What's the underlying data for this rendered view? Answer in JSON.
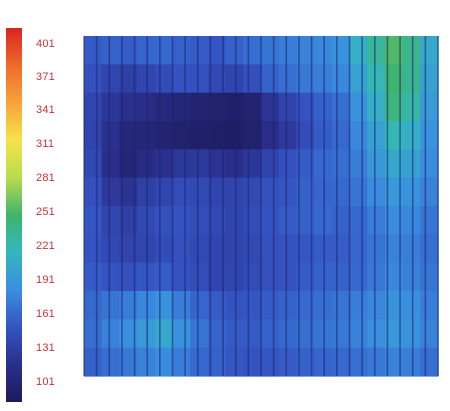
{
  "chart_data": {
    "type": "heatmap",
    "title": "",
    "xlabel": "",
    "ylabel": "",
    "colorbar": {
      "ticks": [
        "401",
        "371",
        "341",
        "311",
        "281",
        "251",
        "221",
        "191",
        "161",
        "131",
        "101"
      ],
      "range": [
        101,
        401
      ],
      "orientation": "vertical",
      "placement": "left",
      "colors": [
        "#d7261e",
        "#ef6a2a",
        "#f6a33a",
        "#f6e24a",
        "#b9dc4c",
        "#3fb46b",
        "#33b7bf",
        "#3a8ee0",
        "#3454c2",
        "#2a2f8c",
        "#1b1a5c"
      ]
    },
    "rows": 12,
    "cols": 20,
    "values": [
      [
        165,
        168,
        166,
        170,
        172,
        168,
        165,
        162,
        168,
        175,
        178,
        182,
        185,
        188,
        195,
        215,
        235,
        255,
        240,
        210
      ],
      [
        158,
        150,
        145,
        150,
        155,
        160,
        158,
        152,
        150,
        158,
        168,
        175,
        180,
        182,
        188,
        205,
        225,
        250,
        238,
        205
      ],
      [
        150,
        138,
        132,
        128,
        122,
        118,
        115,
        112,
        110,
        115,
        135,
        148,
        160,
        168,
        175,
        195,
        215,
        245,
        230,
        200
      ],
      [
        148,
        132,
        120,
        118,
        115,
        112,
        110,
        108,
        106,
        112,
        128,
        140,
        155,
        165,
        172,
        188,
        205,
        225,
        215,
        195
      ],
      [
        152,
        130,
        118,
        125,
        132,
        138,
        140,
        135,
        130,
        138,
        148,
        158,
        165,
        172,
        175,
        182,
        198,
        210,
        205,
        190
      ],
      [
        158,
        140,
        135,
        145,
        150,
        155,
        152,
        150,
        148,
        152,
        158,
        162,
        168,
        170,
        172,
        178,
        190,
        198,
        195,
        185
      ],
      [
        162,
        150,
        145,
        152,
        158,
        160,
        155,
        152,
        150,
        155,
        160,
        165,
        168,
        172,
        168,
        172,
        182,
        190,
        188,
        178
      ],
      [
        160,
        152,
        148,
        150,
        155,
        158,
        152,
        150,
        148,
        152,
        158,
        160,
        162,
        165,
        165,
        170,
        178,
        185,
        182,
        175
      ],
      [
        165,
        160,
        158,
        162,
        165,
        160,
        155,
        150,
        150,
        155,
        158,
        160,
        165,
        168,
        168,
        172,
        180,
        188,
        185,
        178
      ],
      [
        172,
        178,
        182,
        188,
        195,
        182,
        170,
        165,
        160,
        162,
        165,
        168,
        172,
        175,
        178,
        182,
        188,
        195,
        192,
        182
      ],
      [
        175,
        185,
        192,
        200,
        210,
        195,
        178,
        170,
        165,
        165,
        168,
        172,
        175,
        178,
        180,
        185,
        192,
        198,
        195,
        185
      ],
      [
        168,
        175,
        180,
        185,
        190,
        182,
        172,
        168,
        162,
        160,
        162,
        165,
        168,
        170,
        172,
        175,
        180,
        185,
        182,
        175
      ]
    ]
  }
}
